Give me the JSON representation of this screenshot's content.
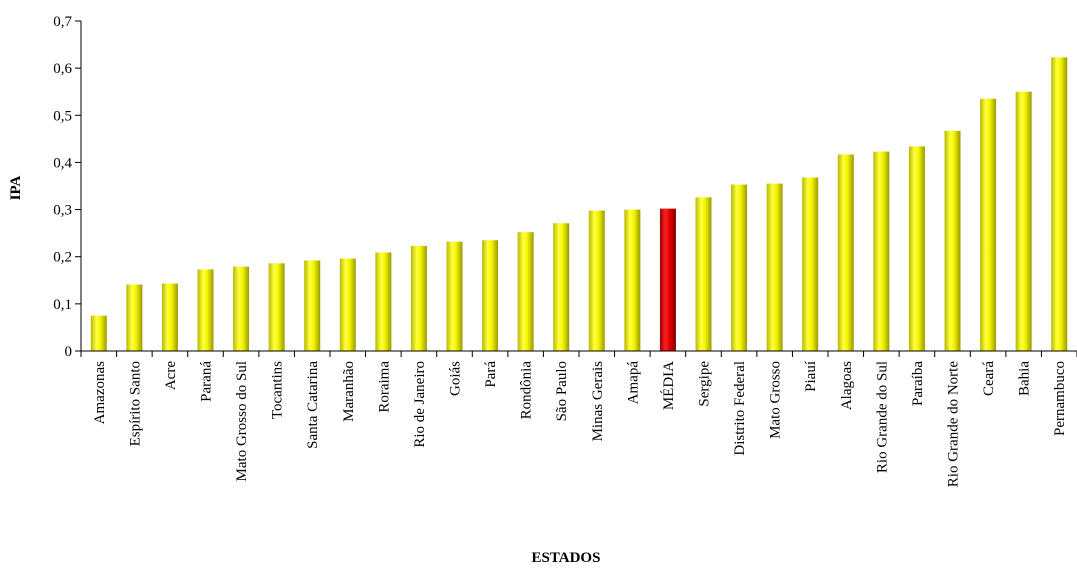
{
  "chart_data": {
    "type": "bar",
    "xlabel": "ESTADOS",
    "ylabel": "IPA",
    "ylim": [
      0,
      0.7
    ],
    "yticks": [
      "0",
      "0,1",
      "0,2",
      "0,3",
      "0,4",
      "0,5",
      "0,6",
      "0,7"
    ],
    "ytick_values": [
      0,
      0.1,
      0.2,
      0.3,
      0.4,
      0.5,
      0.6,
      0.7
    ],
    "grid": false,
    "categories": [
      "Amazonas",
      "Espírito Santo",
      "Acre",
      "Paraná",
      "Mato Grosso do Sul",
      "Tocantins",
      "Santa Catarina",
      "Maranhão",
      "Roraima",
      "Rio de Janeiro",
      "Goiás",
      "Pará",
      "Rondônia",
      "São Paulo",
      "Minas Gerais",
      "Amapá",
      "MÉDIA",
      "Sergipe",
      "Distrito Federal",
      "Mato Grosso",
      "Piauí",
      "Alagoas",
      "Rio Grande do Sul",
      "Paraíba",
      "Rio Grande do Norte",
      "Ceará",
      "Bahia",
      "Pernambuco"
    ],
    "values": [
      0.075,
      0.141,
      0.143,
      0.173,
      0.179,
      0.186,
      0.192,
      0.196,
      0.209,
      0.223,
      0.232,
      0.235,
      0.252,
      0.271,
      0.298,
      0.3,
      0.302,
      0.326,
      0.353,
      0.355,
      0.368,
      0.417,
      0.423,
      0.434,
      0.467,
      0.535,
      0.55,
      0.623
    ],
    "colors": {
      "bar": "#f0f000",
      "highlight": "#e00000"
    },
    "highlight_category": "MÉDIA"
  }
}
